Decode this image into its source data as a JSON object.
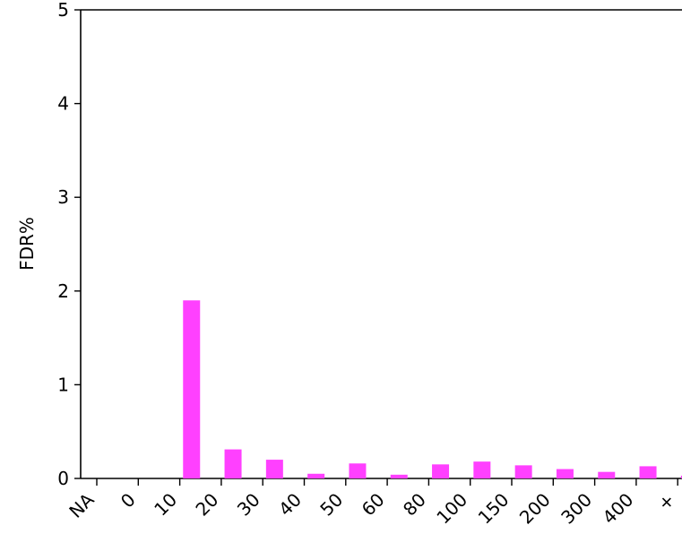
{
  "chart_data": {
    "type": "bar",
    "title": "",
    "xlabel": "",
    "ylabel": "FDR%",
    "ylim": [
      0,
      5
    ],
    "yticks": [
      "0",
      "1",
      "2",
      "3",
      "4",
      "5"
    ],
    "xticks": [
      "NA",
      "0",
      "10",
      "20",
      "30",
      "40",
      "50",
      "60",
      "80",
      "100",
      "150",
      "200",
      "300",
      "400",
      "+"
    ],
    "bar_color": "#ff40ff",
    "series": [
      {
        "values": [
          0,
          0,
          1.9,
          0.31,
          0.2,
          0.05,
          0.16,
          0.04,
          0.15,
          0.18,
          0.14,
          0.1,
          0.07,
          0.13,
          0.03
        ]
      }
    ],
    "grid": false
  }
}
